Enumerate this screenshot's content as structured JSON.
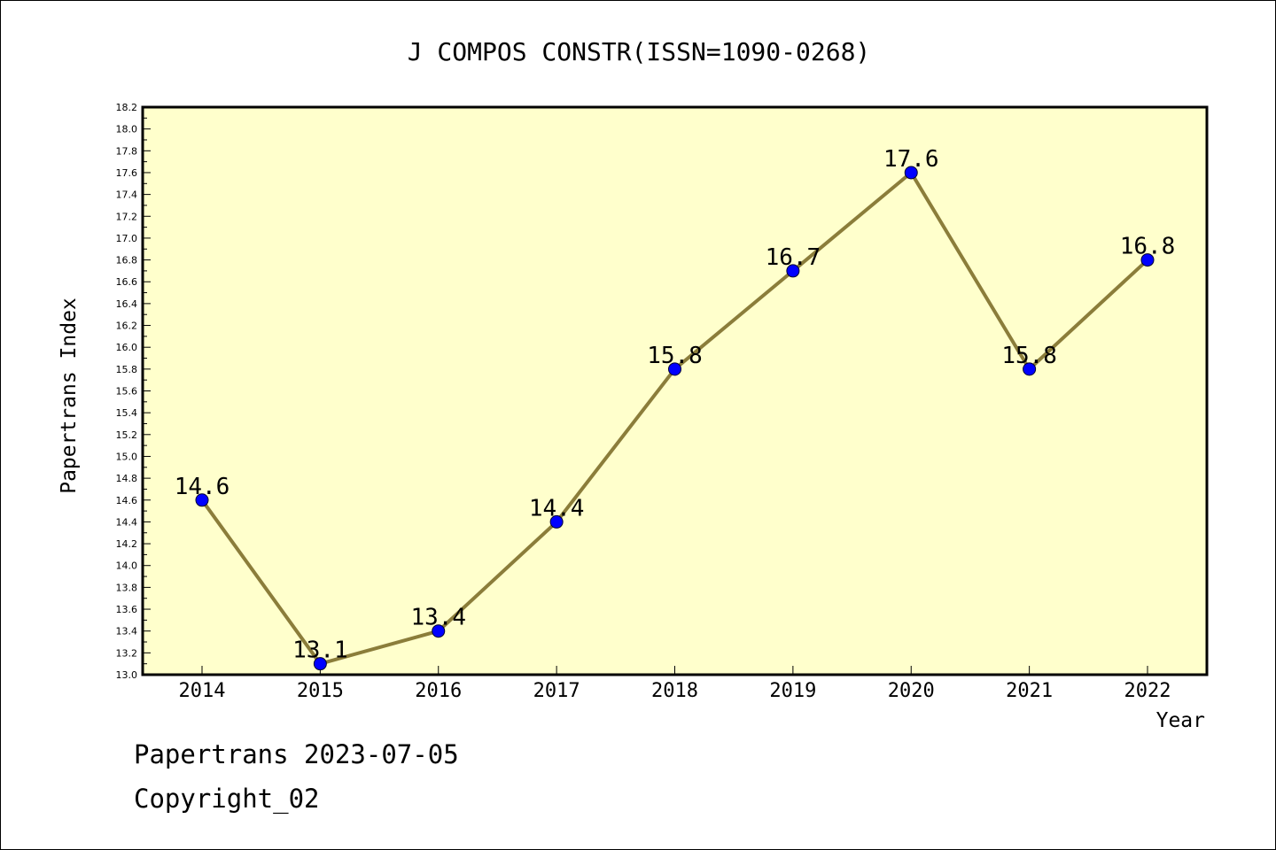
{
  "chart_data": {
    "type": "line",
    "title": "J COMPOS CONSTR(ISSN=1090-0268)",
    "xlabel": "Year",
    "ylabel": "Papertrans Index",
    "categories": [
      "2014",
      "2015",
      "2016",
      "2017",
      "2018",
      "2019",
      "2020",
      "2021",
      "2022"
    ],
    "series": [
      {
        "name": "Papertrans Index",
        "values": [
          14.6,
          13.1,
          13.4,
          14.4,
          15.8,
          16.7,
          17.6,
          15.8,
          16.8
        ]
      }
    ],
    "data_labels": [
      "14.6",
      "13.1",
      "13.4",
      "14.4",
      "15.8",
      "16.7",
      "17.6",
      "15.8",
      "16.8"
    ],
    "ylim": [
      13.0,
      18.2
    ],
    "y_tick_labels": [
      "13.0",
      "13.2",
      "13.4",
      "13.6",
      "13.8",
      "14.0",
      "14.2",
      "14.4",
      "14.6",
      "14.8",
      "15.0",
      "15.2",
      "15.4",
      "15.6",
      "15.8",
      "16.0",
      "16.2",
      "16.4",
      "16.6",
      "16.8",
      "17.0",
      "17.2",
      "17.4",
      "17.6",
      "17.8",
      "18.0",
      "18.2"
    ],
    "grid": false,
    "legend": "none",
    "colors": {
      "plot_background": "#ffffcc",
      "line": "#8b7d3a",
      "marker": "#0000ff"
    }
  },
  "footer": {
    "line1": "Papertrans 2023-07-05",
    "line2": "Copyright_02"
  }
}
